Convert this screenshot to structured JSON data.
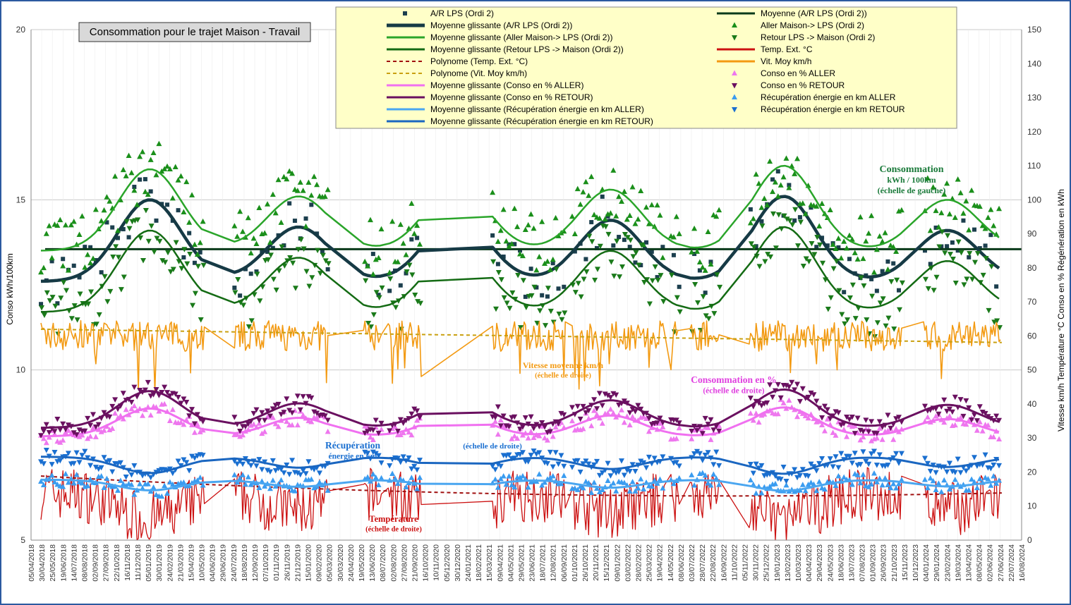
{
  "chart_data": {
    "type": "line",
    "title": "Consommation pour le trajet Maison - Travail",
    "ylabel_left": "Conso kWh/100km",
    "ylabel_right": "Vitesse km/h   Température °C   Conso en %  Régénération en kWh",
    "ylim_left": [
      5,
      20
    ],
    "yticks_left": [
      "5",
      "10",
      "15",
      "20"
    ],
    "ylim_right": [
      0,
      150
    ],
    "yticks_right": [
      "0",
      "10",
      "20",
      "30",
      "40",
      "50",
      "60",
      "70",
      "80",
      "90",
      "100",
      "110",
      "120",
      "130",
      "140",
      "150"
    ],
    "grid": true,
    "legend_position": "top",
    "x_dates": [
      "05/04/2018",
      "30/04/2018",
      "25/05/2018",
      "19/06/2018",
      "14/07/2018",
      "08/08/2018",
      "02/09/2018",
      "27/09/2018",
      "22/10/2018",
      "16/11/2018",
      "11/12/2018",
      "05/01/2019",
      "30/01/2019",
      "24/02/2019",
      "21/03/2019",
      "15/04/2019",
      "10/05/2019",
      "04/06/2019",
      "29/06/2019",
      "24/07/2019",
      "18/08/2019",
      "12/09/2019",
      "07/10/2019",
      "01/11/2019",
      "26/11/2019",
      "21/12/2019",
      "15/01/2020",
      "09/02/2020",
      "05/03/2020",
      "30/03/2020",
      "24/04/2020",
      "19/05/2020",
      "13/06/2020",
      "08/07/2020",
      "02/08/2020",
      "27/08/2020",
      "21/09/2020",
      "16/10/2020",
      "10/11/2020",
      "05/12/2020",
      "30/12/2020",
      "24/01/2021",
      "18/02/2021",
      "15/03/2021",
      "09/04/2021",
      "04/05/2021",
      "29/05/2021",
      "23/06/2021",
      "18/07/2021",
      "12/08/2021",
      "06/09/2021",
      "01/10/2021",
      "26/10/2021",
      "20/11/2021",
      "15/12/2021",
      "09/01/2022",
      "03/02/2022",
      "28/02/2022",
      "25/03/2022",
      "19/04/2022",
      "14/05/2022",
      "08/06/2022",
      "03/07/2022",
      "28/07/2022",
      "22/08/2022",
      "16/09/2022",
      "11/10/2022",
      "05/11/2022",
      "30/11/2022",
      "25/12/2022",
      "19/01/2023",
      "13/02/2023",
      "10/03/2023",
      "04/04/2023",
      "29/04/2023",
      "24/05/2023",
      "18/06/2023",
      "13/07/2023",
      "07/08/2023",
      "01/09/2023",
      "26/09/2023",
      "21/10/2023",
      "15/11/2023",
      "10/12/2023",
      "04/01/2024",
      "29/01/2024",
      "23/02/2024",
      "19/03/2024",
      "13/04/2024",
      "08/05/2024",
      "02/06/2024",
      "27/06/2024",
      "22/07/2024",
      "16/08/2024"
    ],
    "series": [
      {
        "name": "A/R LPS (Ordi 2)",
        "axis": "left",
        "style": "marker-square",
        "color": "#1c3f4e"
      },
      {
        "name": "Moyenne (A/R LPS (Ordi 2))",
        "axis": "left",
        "style": "line",
        "color": "#0a3a1a",
        "value": 13.55
      },
      {
        "name": "Moyenne glissante (A/R LPS (Ordi 2))",
        "axis": "left",
        "style": "line-thick",
        "color": "#163a45"
      },
      {
        "name": "Aller Maison-> LPS (Ordi 2)",
        "axis": "left",
        "style": "marker-triangle-up",
        "color": "#1a8f1a"
      },
      {
        "name": "Moyenne glissante (Aller Maison-> LPS (Ordi 2))",
        "axis": "left",
        "style": "line",
        "color": "#2aa52a"
      },
      {
        "name": "Retour LPS -> Maison (Ordi 2)",
        "axis": "left",
        "style": "marker-triangle-down",
        "color": "#1a7a1a"
      },
      {
        "name": "Moyenne glissante (Retour LPS -> Maison (Ordi 2))",
        "axis": "left",
        "style": "line",
        "color": "#146b14"
      },
      {
        "name": "Temp. Ext. °C",
        "axis": "right",
        "style": "line-thin",
        "color": "#cc1111"
      },
      {
        "name": "Polynome (Temp. Ext. °C)",
        "axis": "right",
        "style": "dash",
        "color": "#a01010"
      },
      {
        "name": "Vit. Moy km/h",
        "axis": "right",
        "style": "line-thin",
        "color": "#f39a12"
      },
      {
        "name": "Polynome (Vit. Moy km/h)",
        "axis": "right",
        "style": "dash",
        "color": "#c9a010"
      },
      {
        "name": "Conso en % ALLER",
        "axis": "right",
        "style": "marker-triangle-up",
        "color": "#ee77ee"
      },
      {
        "name": "Moyenne glissante (Conso en % ALLER)",
        "axis": "right",
        "style": "line",
        "color": "#f070f0"
      },
      {
        "name": "Conso en % RETOUR",
        "axis": "right",
        "style": "marker-triangle-down",
        "color": "#6a1060"
      },
      {
        "name": "Moyenne glissante (Conso en % RETOUR)",
        "axis": "right",
        "style": "line",
        "color": "#6a1060"
      },
      {
        "name": "Récupération énergie en km ALLER",
        "axis": "right",
        "style": "marker-triangle-up",
        "color": "#3a9cf0"
      },
      {
        "name": "Moyenne glissante (Récupération énergie en km ALLER)",
        "axis": "right",
        "style": "line",
        "color": "#4aa6f0"
      },
      {
        "name": "Récupération énergie en km RETOUR",
        "axis": "right",
        "style": "marker-triangle-down",
        "color": "#1a6fd0"
      },
      {
        "name": "Moyenne glissante (Récupération énergie en km RETOUR)",
        "axis": "right",
        "style": "line",
        "color": "#1a66c0"
      }
    ],
    "annotations": [
      {
        "key": "conso",
        "lines": [
          "Consommation",
          "kWh / 100km",
          "(échelle de gauche)"
        ],
        "color": "#1a7a3a"
      },
      {
        "key": "vitesse",
        "lines": [
          "Vitesse moyenne km/h",
          "(échelle de droite)"
        ],
        "color": "#f39a12"
      },
      {
        "key": "pct",
        "lines": [
          "Consommation en %",
          "(échelle de droite)"
        ],
        "color": "#e040e0"
      },
      {
        "key": "recup",
        "lines": [
          "Récupération",
          "énergie en km"
        ],
        "color": "#1a6fd0"
      },
      {
        "key": "recup2",
        "lines": [
          "(échelle de droite)"
        ],
        "color": "#1a6fd0"
      },
      {
        "key": "temp",
        "lines": [
          "Température",
          "(échelle de droite)"
        ],
        "color": "#cc1111"
      }
    ],
    "summary": {
      "ar_rolling_peaks_kwh": [
        15.1,
        14.3,
        14.6,
        14.5,
        15.1,
        14.2
      ],
      "ar_rolling_troughs_kwh": [
        12.7,
        12.6,
        12.7,
        12.5,
        12.0,
        12.7
      ],
      "speed_typical_kmh": 60,
      "temp_poly_start_c": 16,
      "temp_poly_mid_c": 13,
      "conso_pct_aller_range": [
        31,
        39
      ],
      "conso_pct_retour_range": [
        33,
        43
      ],
      "recup_aller_range": [
        13,
        18
      ],
      "recup_retour_range": [
        18,
        25
      ]
    }
  }
}
